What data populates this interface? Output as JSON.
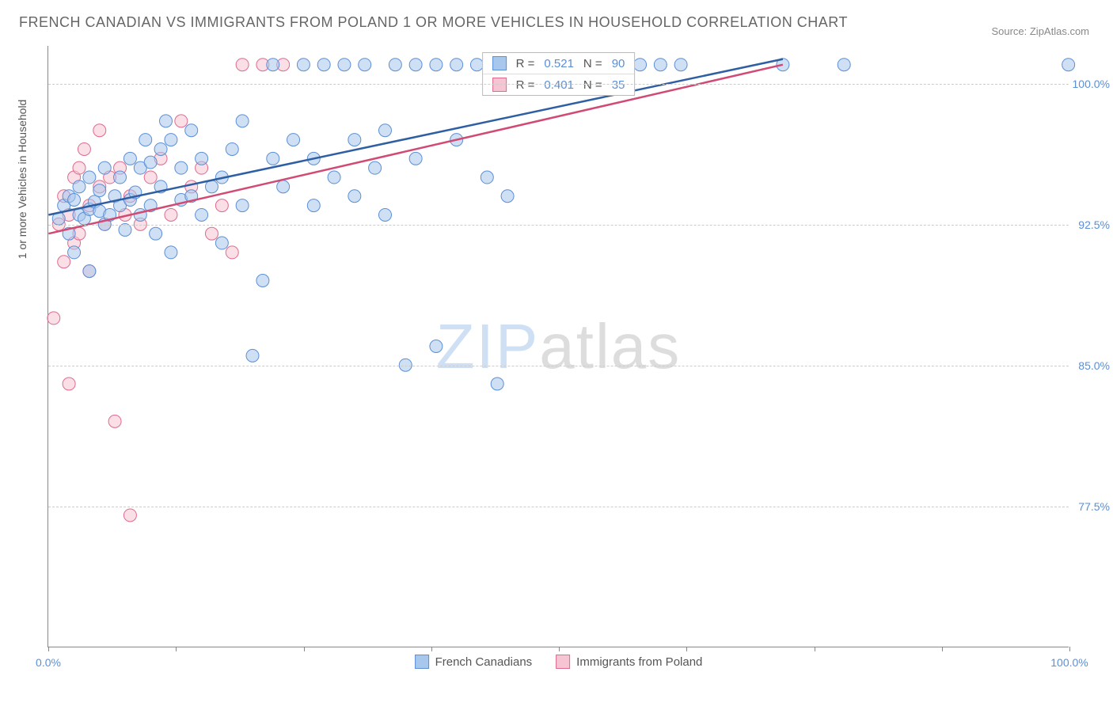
{
  "title": "FRENCH CANADIAN VS IMMIGRANTS FROM POLAND 1 OR MORE VEHICLES IN HOUSEHOLD CORRELATION CHART",
  "source": "Source: ZipAtlas.com",
  "y_axis_label": "1 or more Vehicles in Household",
  "watermark": {
    "zip": "ZIP",
    "atlas": "atlas"
  },
  "chart": {
    "type": "scatter",
    "background_color": "#ffffff",
    "grid_color": "#cccccc",
    "axis_color": "#888888",
    "xlim": [
      0,
      100
    ],
    "ylim": [
      70,
      102
    ],
    "x_ticks": [
      0,
      12.5,
      25,
      37.5,
      50,
      62.5,
      75,
      87.5,
      100
    ],
    "x_tick_labels_shown": {
      "0": "0.0%",
      "100": "100.0%"
    },
    "y_ticks": [
      77.5,
      85.0,
      92.5,
      100.0
    ],
    "y_tick_labels": [
      "77.5%",
      "85.0%",
      "92.5%",
      "100.0%"
    ],
    "series": [
      {
        "name": "French Canadians",
        "fill_color": "#a7c7ec",
        "stroke_color": "#5b8fd6",
        "line_color": "#2f5fa3",
        "fill_opacity": 0.55,
        "marker_radius": 8,
        "regression": {
          "x1": 0,
          "y1": 93.0,
          "x2": 72,
          "y2": 101.3
        },
        "stats": {
          "R": "0.521",
          "N": "90"
        },
        "points": [
          [
            1,
            92.8
          ],
          [
            1.5,
            93.5
          ],
          [
            2,
            94.0
          ],
          [
            2,
            92.0
          ],
          [
            2.5,
            91.0
          ],
          [
            2.5,
            93.8
          ],
          [
            3,
            93.0
          ],
          [
            3,
            94.5
          ],
          [
            3.5,
            92.8
          ],
          [
            4,
            93.3
          ],
          [
            4,
            95.0
          ],
          [
            4,
            90.0
          ],
          [
            4.5,
            93.7
          ],
          [
            5,
            93.2
          ],
          [
            5,
            94.3
          ],
          [
            5.5,
            92.5
          ],
          [
            5.5,
            95.5
          ],
          [
            6,
            93.0
          ],
          [
            6.5,
            94.0
          ],
          [
            7,
            93.5
          ],
          [
            7,
            95.0
          ],
          [
            7.5,
            92.2
          ],
          [
            8,
            93.8
          ],
          [
            8,
            96.0
          ],
          [
            8.5,
            94.2
          ],
          [
            9,
            93.0
          ],
          [
            9,
            95.5
          ],
          [
            9.5,
            97.0
          ],
          [
            10,
            93.5
          ],
          [
            10,
            95.8
          ],
          [
            10.5,
            92.0
          ],
          [
            11,
            94.5
          ],
          [
            11,
            96.5
          ],
          [
            11.5,
            98.0
          ],
          [
            12,
            91.0
          ],
          [
            12,
            97.0
          ],
          [
            13,
            93.8
          ],
          [
            13,
            95.5
          ],
          [
            14,
            94.0
          ],
          [
            14,
            97.5
          ],
          [
            15,
            93.0
          ],
          [
            15,
            96.0
          ],
          [
            16,
            94.5
          ],
          [
            17,
            95.0
          ],
          [
            17,
            91.5
          ],
          [
            18,
            96.5
          ],
          [
            19,
            93.5
          ],
          [
            19,
            98.0
          ],
          [
            20,
            85.5
          ],
          [
            21,
            89.5
          ],
          [
            22,
            96.0
          ],
          [
            22,
            101.0
          ],
          [
            23,
            94.5
          ],
          [
            24,
            97.0
          ],
          [
            25,
            101.0
          ],
          [
            26,
            93.5
          ],
          [
            26,
            96.0
          ],
          [
            27,
            101.0
          ],
          [
            28,
            95.0
          ],
          [
            29,
            101.0
          ],
          [
            30,
            94.0
          ],
          [
            30,
            97.0
          ],
          [
            31,
            101.0
          ],
          [
            32,
            95.5
          ],
          [
            33,
            93.0
          ],
          [
            33,
            97.5
          ],
          [
            34,
            101.0
          ],
          [
            35,
            85.0
          ],
          [
            36,
            96.0
          ],
          [
            36,
            101.0
          ],
          [
            38,
            86.0
          ],
          [
            38,
            101.0
          ],
          [
            40,
            97.0
          ],
          [
            40,
            101.0
          ],
          [
            42,
            101.0
          ],
          [
            43,
            95.0
          ],
          [
            44,
            84.0
          ],
          [
            45,
            94.0
          ],
          [
            46,
            101.0
          ],
          [
            48,
            101.0
          ],
          [
            50,
            101.0
          ],
          [
            52,
            101.0
          ],
          [
            54,
            101.0
          ],
          [
            56,
            101.0
          ],
          [
            58,
            101.0
          ],
          [
            60,
            101.0
          ],
          [
            62,
            101.0
          ],
          [
            72,
            101.0
          ],
          [
            78,
            101.0
          ],
          [
            100,
            101.0
          ]
        ]
      },
      {
        "name": "Immigrants from Poland",
        "fill_color": "#f6c4d3",
        "stroke_color": "#e06a8e",
        "line_color": "#d14a74",
        "fill_opacity": 0.55,
        "marker_radius": 8,
        "regression": {
          "x1": 0,
          "y1": 92.0,
          "x2": 72,
          "y2": 101.0
        },
        "stats": {
          "R": "0.401",
          "N": "35"
        },
        "points": [
          [
            0.5,
            87.5
          ],
          [
            1,
            92.5
          ],
          [
            1.5,
            94.0
          ],
          [
            1.5,
            90.5
          ],
          [
            2,
            93.0
          ],
          [
            2,
            84.0
          ],
          [
            2.5,
            95.0
          ],
          [
            2.5,
            91.5
          ],
          [
            3,
            92.0
          ],
          [
            3,
            95.5
          ],
          [
            3.5,
            96.5
          ],
          [
            4,
            93.5
          ],
          [
            4,
            90.0
          ],
          [
            5,
            94.5
          ],
          [
            5,
            97.5
          ],
          [
            5.5,
            92.5
          ],
          [
            6,
            95.0
          ],
          [
            6.5,
            82.0
          ],
          [
            7,
            95.5
          ],
          [
            7.5,
            93.0
          ],
          [
            8,
            94.0
          ],
          [
            8,
            77.0
          ],
          [
            9,
            92.5
          ],
          [
            10,
            95.0
          ],
          [
            11,
            96.0
          ],
          [
            12,
            93.0
          ],
          [
            13,
            98.0
          ],
          [
            14,
            94.5
          ],
          [
            15,
            95.5
          ],
          [
            16,
            92.0
          ],
          [
            17,
            93.5
          ],
          [
            18,
            91.0
          ],
          [
            19,
            101.0
          ],
          [
            21,
            101.0
          ],
          [
            23,
            101.0
          ]
        ]
      }
    ]
  },
  "legend_top": {
    "rows": [
      {
        "swatch_fill": "#a7c7ec",
        "swatch_border": "#5b8fd6",
        "r_label": "R =",
        "r_val": "0.521",
        "n_label": "N =",
        "n_val": "90"
      },
      {
        "swatch_fill": "#f6c4d3",
        "swatch_border": "#e06a8e",
        "r_label": "R =",
        "r_val": "0.401",
        "n_label": "N =",
        "n_val": "35"
      }
    ]
  },
  "legend_bottom": {
    "items": [
      {
        "swatch_fill": "#a7c7ec",
        "swatch_border": "#5b8fd6",
        "label": "French Canadians"
      },
      {
        "swatch_fill": "#f6c4d3",
        "swatch_border": "#e06a8e",
        "label": "Immigrants from Poland"
      }
    ]
  }
}
